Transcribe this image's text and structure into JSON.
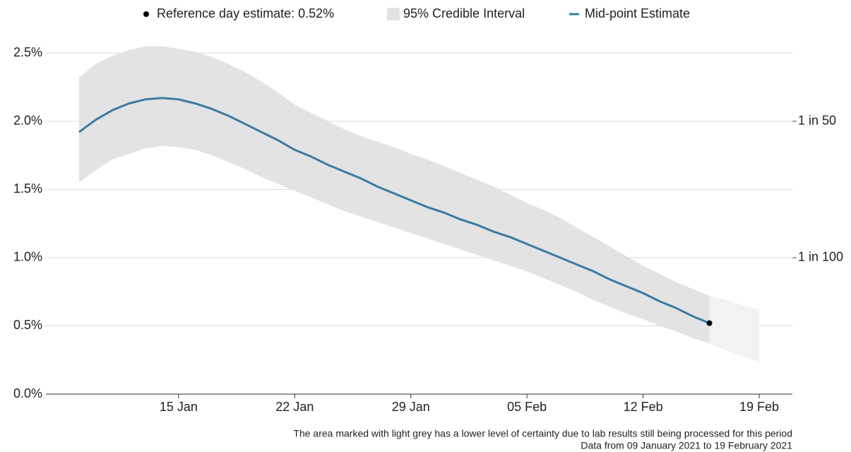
{
  "chart_data": {
    "type": "line",
    "x": [
      "2021-01-09",
      "2021-01-10",
      "2021-01-11",
      "2021-01-12",
      "2021-01-13",
      "2021-01-14",
      "2021-01-15",
      "2021-01-16",
      "2021-01-17",
      "2021-01-18",
      "2021-01-19",
      "2021-01-20",
      "2021-01-21",
      "2021-01-22",
      "2021-01-23",
      "2021-01-24",
      "2021-01-25",
      "2021-01-26",
      "2021-01-27",
      "2021-01-28",
      "2021-01-29",
      "2021-01-30",
      "2021-01-31",
      "2021-02-01",
      "2021-02-02",
      "2021-02-03",
      "2021-02-04",
      "2021-02-05",
      "2021-02-06",
      "2021-02-07",
      "2021-02-08",
      "2021-02-09",
      "2021-02-10",
      "2021-02-11",
      "2021-02-12",
      "2021-02-13",
      "2021-02-14",
      "2021-02-15",
      "2021-02-16"
    ],
    "xlim": [
      "2021-01-07",
      "2021-02-21"
    ],
    "xticks": [
      {
        "value": "2021-01-15",
        "label": "15 Jan"
      },
      {
        "value": "2021-01-22",
        "label": "22 Jan"
      },
      {
        "value": "2021-01-29",
        "label": "29 Jan"
      },
      {
        "value": "2021-02-05",
        "label": "05 Feb"
      },
      {
        "value": "2021-02-12",
        "label": "12 Feb"
      },
      {
        "value": "2021-02-19",
        "label": "19 Feb"
      }
    ],
    "ylim": [
      0,
      2.5
    ],
    "yticks": [
      {
        "value": 0,
        "label": "0.0%"
      },
      {
        "value": 0.5,
        "label": "0.5%"
      },
      {
        "value": 1,
        "label": "1.0%"
      },
      {
        "value": 1.5,
        "label": "1.5%"
      },
      {
        "value": 2,
        "label": "2.0%"
      },
      {
        "value": 2.5,
        "label": "2.5%"
      }
    ],
    "y2lim": [
      0,
      2.5
    ],
    "y2ticks": [
      {
        "value": 2,
        "label": "1 in 50"
      },
      {
        "value": 1,
        "label": "1 in 100"
      }
    ],
    "grid": true,
    "series": [
      {
        "name": "Mid-point Estimate",
        "color": "#3b7aa3",
        "values": [
          1.92,
          2.01,
          2.08,
          2.13,
          2.16,
          2.17,
          2.16,
          2.13,
          2.09,
          2.04,
          1.98,
          1.92,
          1.86,
          1.79,
          1.74,
          1.68,
          1.63,
          1.58,
          1.52,
          1.47,
          1.42,
          1.37,
          1.33,
          1.28,
          1.24,
          1.19,
          1.15,
          1.1,
          1.05,
          1.0,
          0.95,
          0.9,
          0.84,
          0.79,
          0.74,
          0.68,
          0.63,
          0.57,
          0.52
        ]
      }
    ],
    "band": {
      "name": "95% Credible Interval",
      "color": "#e3e3e3",
      "upper": [
        2.32,
        2.42,
        2.48,
        2.52,
        2.55,
        2.55,
        2.53,
        2.51,
        2.47,
        2.42,
        2.36,
        2.29,
        2.21,
        2.12,
        2.06,
        2.0,
        1.94,
        1.89,
        1.85,
        1.81,
        1.76,
        1.72,
        1.67,
        1.62,
        1.57,
        1.52,
        1.46,
        1.4,
        1.35,
        1.29,
        1.22,
        1.15,
        1.08,
        1.01,
        0.94,
        0.88,
        0.82,
        0.77,
        0.72
      ],
      "lower": [
        1.55,
        1.64,
        1.72,
        1.76,
        1.8,
        1.82,
        1.81,
        1.79,
        1.75,
        1.7,
        1.65,
        1.59,
        1.54,
        1.49,
        1.44,
        1.39,
        1.34,
        1.3,
        1.26,
        1.22,
        1.18,
        1.14,
        1.1,
        1.06,
        1.02,
        0.98,
        0.94,
        0.9,
        0.85,
        0.8,
        0.75,
        0.69,
        0.64,
        0.59,
        0.55,
        0.5,
        0.46,
        0.41,
        0.37
      ]
    },
    "provisional_band": {
      "color": "#f2f2f2",
      "x": [
        "2021-02-16",
        "2021-02-17",
        "2021-02-18",
        "2021-02-19"
      ],
      "upper": [
        0.72,
        0.69,
        0.65,
        0.62
      ],
      "lower": [
        0.37,
        0.32,
        0.28,
        0.23
      ]
    },
    "reference_point": {
      "x": "2021-02-16",
      "value": 0.52,
      "label": "Reference day estimate: 0.52%",
      "color": "#000000"
    },
    "notes": [
      "The area marked with light grey has a lower level of certainty due to lab results still being processed for this period",
      "Data from 09 January 2021 to 19 February 2021"
    ]
  }
}
